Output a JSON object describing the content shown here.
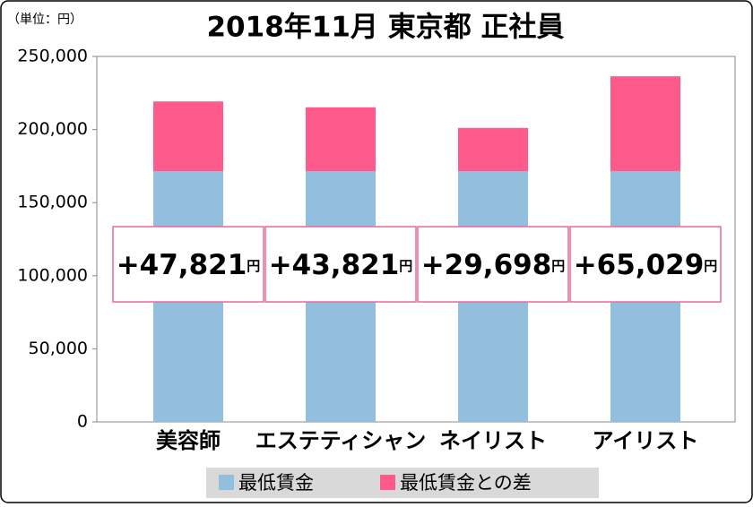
{
  "chart_data": {
    "type": "stacked_bar",
    "title": "2018年11月 東京都 正社員",
    "unit_note": "（単位：円）",
    "categories": [
      "美容師",
      "エステティシャン",
      "ネイリスト",
      "アイリスト"
    ],
    "series": [
      {
        "name": "最低賃金",
        "color": "#93bfdf",
        "values": [
          171390,
          171390,
          171390,
          171390
        ]
      },
      {
        "name": "最低賃金との差",
        "color": "#ff5a8c",
        "values": [
          47821,
          43821,
          29698,
          65029
        ],
        "value_labels": [
          "+47,821",
          "+43,821",
          "+29,698",
          "+65,029"
        ]
      }
    ],
    "value_label_unit": "円",
    "ylim": [
      0,
      250000
    ],
    "yticks": [
      0,
      {
        "value": 50000,
        "label": "50,000"
      },
      {
        "value": 100000,
        "label": "100,000"
      },
      {
        "value": 150000,
        "label": "150,000"
      },
      {
        "value": 200000,
        "label": "200,000"
      },
      {
        "value": 250000,
        "label": "250,000"
      }
    ]
  }
}
